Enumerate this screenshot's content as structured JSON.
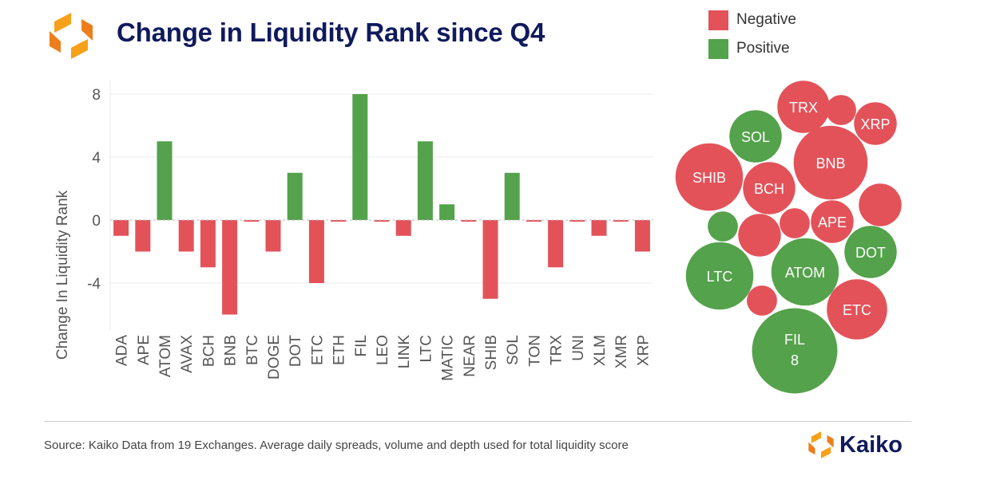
{
  "header": {
    "title": "Change in Liquidity Rank since Q4",
    "logo_icon": "kaiko-logo-icon"
  },
  "legend": {
    "negative": {
      "label": "Negative",
      "color": "#e35259"
    },
    "positive": {
      "label": "Positive",
      "color": "#54a24b"
    }
  },
  "chart_data": [
    {
      "type": "bar",
      "title": "Change in Liquidity Rank since Q4",
      "xlabel": "",
      "ylabel": "Change In Liquidity Rank",
      "ylim": [
        -7,
        8.8
      ],
      "yticks": [
        8,
        4,
        0,
        -4
      ],
      "ytick_labels": [
        "8",
        "4",
        "0",
        "-4"
      ],
      "grid": true,
      "categories": [
        "ADA",
        "APE",
        "ATOM",
        "AVAX",
        "BCH",
        "BNB",
        "BTC",
        "DOGE",
        "DOT",
        "ETC",
        "ETH",
        "FIL",
        "LEO",
        "LINK",
        "LTC",
        "MATIC",
        "NEAR",
        "SHIB",
        "SOL",
        "TON",
        "TRX",
        "UNI",
        "XLM",
        "XMR",
        "XRP"
      ],
      "values": [
        -1,
        -2,
        5,
        -2,
        -3,
        -6,
        -0.1,
        -2,
        3,
        -4,
        -0.1,
        8,
        -0.1,
        -1,
        5,
        1,
        -0.1,
        -5,
        3,
        -0.1,
        -3,
        -0.1,
        -1,
        -0.1,
        -2
      ],
      "colors": {
        "negative": "#e35259",
        "positive": "#54a24b"
      }
    },
    {
      "type": "bubble",
      "bubbles": [
        {
          "label": "TRX",
          "value": -3,
          "sign": "negative"
        },
        {
          "label": "",
          "value": -1,
          "sign": "negative"
        },
        {
          "label": "XRP",
          "value": -2,
          "sign": "negative"
        },
        {
          "label": "SOL",
          "value": 3,
          "sign": "positive"
        },
        {
          "label": "BNB",
          "value": -6,
          "sign": "negative"
        },
        {
          "label": "SHIB",
          "value": -5,
          "sign": "negative"
        },
        {
          "label": "BCH",
          "value": -3,
          "sign": "negative"
        },
        {
          "label": "",
          "value": -2,
          "sign": "negative"
        },
        {
          "label": "APE",
          "value": -2,
          "sign": "negative"
        },
        {
          "label": "",
          "value": 1,
          "sign": "positive"
        },
        {
          "label": "",
          "value": -2,
          "sign": "negative"
        },
        {
          "label": "",
          "value": -1,
          "sign": "negative"
        },
        {
          "label": "DOT",
          "value": 3,
          "sign": "positive"
        },
        {
          "label": "LTC",
          "value": 5,
          "sign": "positive"
        },
        {
          "label": "ATOM",
          "value": 5,
          "sign": "positive"
        },
        {
          "label": "",
          "value": -1,
          "sign": "negative"
        },
        {
          "label": "ETC",
          "value": -4,
          "sign": "negative"
        },
        {
          "label": "FIL",
          "value": 8,
          "sign": "positive",
          "value_label": "8"
        }
      ]
    }
  ],
  "footer": {
    "source": "Source: Kaiko Data from 19 Exchanges. Average daily spreads, volume and depth used for total liquidity score",
    "brand": "Kaiko"
  }
}
